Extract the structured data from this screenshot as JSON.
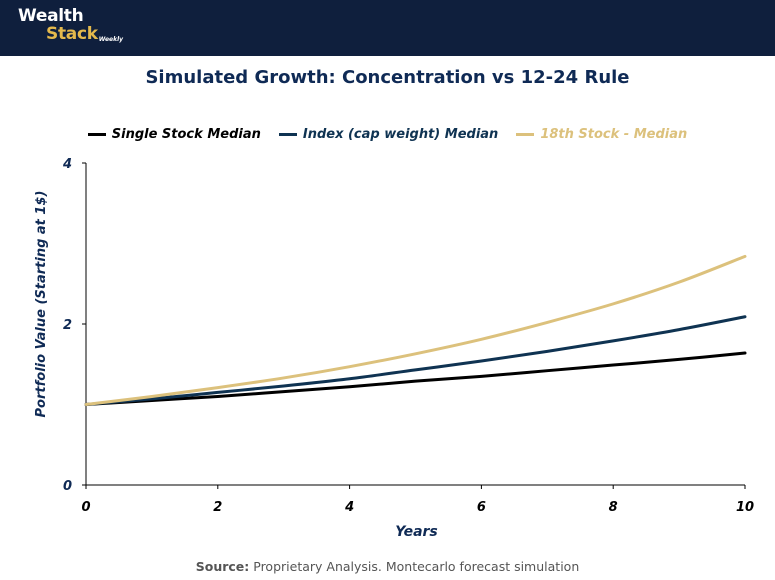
{
  "brand": {
    "line1": "Wealth",
    "line2": "Stack",
    "tag": "Weekly",
    "colors": {
      "bar": "#0f1f3d",
      "gold": "#e4b94c",
      "white": "#ffffff"
    }
  },
  "footer": {
    "source_label": "Source:",
    "source_text": " Proprietary Analysis. Montecarlo forecast simulation"
  },
  "chart_data": {
    "type": "line",
    "title": "Simulated Growth: Concentration vs 12-24 Rule",
    "xlabel": "Years",
    "ylabel": "Portfolio Value (Starting at 1$)",
    "xlim": [
      0,
      10
    ],
    "ylim": [
      0,
      4
    ],
    "xticks": [
      0,
      2,
      4,
      6,
      8,
      10
    ],
    "yticks": [
      0,
      2,
      4
    ],
    "grid": false,
    "legend_position": "top",
    "x": [
      0,
      1,
      2,
      3,
      4,
      5,
      6,
      7,
      8,
      9,
      10
    ],
    "series": [
      {
        "name": "Single Stock Median",
        "color": "#000000",
        "values": [
          1.0,
          1.05,
          1.1,
          1.16,
          1.22,
          1.29,
          1.35,
          1.42,
          1.49,
          1.56,
          1.64
        ]
      },
      {
        "name": "Index (cap weight) Median",
        "color": "#0f3352",
        "values": [
          1.0,
          1.07,
          1.15,
          1.23,
          1.32,
          1.43,
          1.54,
          1.66,
          1.79,
          1.93,
          2.09
        ]
      },
      {
        "name": "18th Stock - Median",
        "color": "#dcc17c",
        "values": [
          1.0,
          1.1,
          1.21,
          1.33,
          1.47,
          1.63,
          1.81,
          2.02,
          2.25,
          2.52,
          2.84
        ]
      }
    ]
  }
}
